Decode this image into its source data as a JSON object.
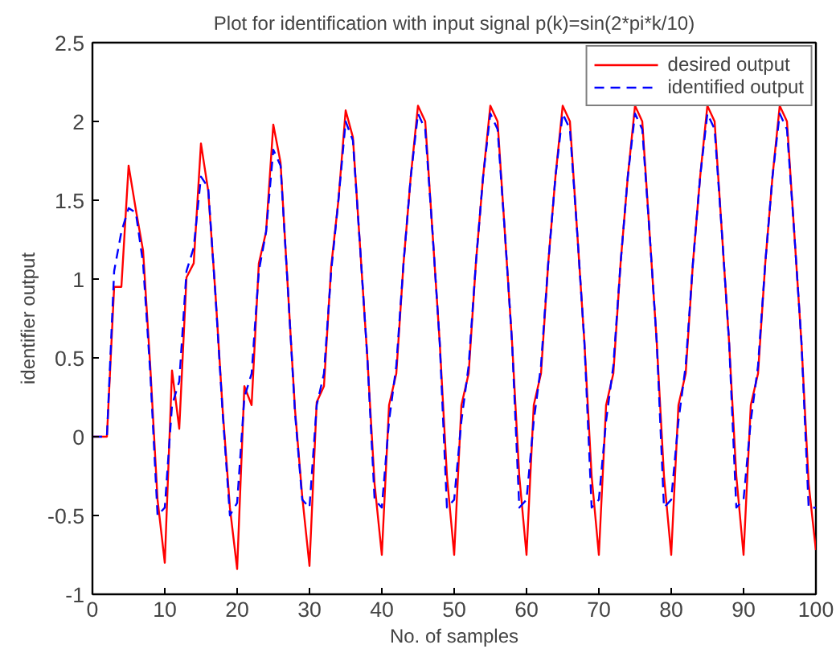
{
  "chart_data": {
    "type": "line",
    "title": "Plot for identification with input signal p(k)=sin(2*pi*k/10)",
    "xlabel": "No. of samples",
    "ylabel": "identifier output",
    "x": [
      0,
      1,
      2,
      3,
      4,
      5,
      6,
      7,
      8,
      9,
      10,
      11,
      12,
      13,
      14,
      15,
      16,
      17,
      18,
      19,
      20,
      21,
      22,
      23,
      24,
      25,
      26,
      27,
      28,
      29,
      30,
      31,
      32,
      33,
      34,
      35,
      36,
      37,
      38,
      39,
      40,
      41,
      42,
      43,
      44,
      45,
      46,
      47,
      48,
      49,
      50,
      51,
      52,
      53,
      54,
      55,
      56,
      57,
      58,
      59,
      60,
      61,
      62,
      63,
      64,
      65,
      66,
      67,
      68,
      69,
      70,
      71,
      72,
      73,
      74,
      75,
      76,
      77,
      78,
      79,
      80,
      81,
      82,
      83,
      84,
      85,
      86,
      87,
      88,
      89,
      90,
      91,
      92,
      93,
      94,
      95,
      96,
      97,
      98,
      99,
      100
    ],
    "series": [
      {
        "name": "desired output",
        "color": "#ff0000",
        "line_style": "solid",
        "values": [
          0,
          0,
          0,
          0.95,
          0.95,
          1.72,
          1.44,
          1.18,
          0.44,
          -0.4,
          -0.8,
          0.42,
          0.05,
          1.01,
          1.1,
          1.86,
          1.56,
          0.91,
          0.17,
          -0.45,
          -0.84,
          0.32,
          0.2,
          1.1,
          1.3,
          1.98,
          1.74,
          0.95,
          0.17,
          -0.38,
          -0.82,
          0.22,
          0.32,
          1.08,
          1.5,
          2.07,
          1.9,
          1.2,
          0.5,
          -0.3,
          -0.75,
          0.2,
          0.4,
          1.1,
          1.65,
          2.1,
          2.0,
          1.3,
          0.6,
          -0.25,
          -0.75,
          0.2,
          0.4,
          1.1,
          1.65,
          2.1,
          2.0,
          1.3,
          0.6,
          -0.25,
          -0.75,
          0.2,
          0.4,
          1.1,
          1.65,
          2.1,
          2.0,
          1.3,
          0.6,
          -0.25,
          -0.75,
          0.2,
          0.4,
          1.1,
          1.65,
          2.1,
          2.0,
          1.3,
          0.6,
          -0.25,
          -0.75,
          0.2,
          0.4,
          1.1,
          1.65,
          2.1,
          2.0,
          1.3,
          0.6,
          -0.25,
          -0.75,
          0.2,
          0.4,
          1.1,
          1.65,
          2.1,
          2.0,
          1.3,
          0.6,
          -0.3,
          -0.72
        ]
      },
      {
        "name": "identified output",
        "color": "#0000ff",
        "line_style": "dashed",
        "values": [
          0,
          0,
          0,
          1.05,
          1.3,
          1.45,
          1.42,
          1.1,
          0.4,
          -0.5,
          -0.45,
          0.2,
          0.35,
          1.05,
          1.2,
          1.65,
          1.58,
          0.9,
          0.15,
          -0.5,
          -0.42,
          0.25,
          0.4,
          1.05,
          1.3,
          1.82,
          1.72,
          0.95,
          0.15,
          -0.4,
          -0.45,
          0.2,
          0.4,
          1.05,
          1.5,
          2.0,
          1.88,
          1.2,
          0.5,
          -0.4,
          -0.45,
          0.1,
          0.45,
          1.1,
          1.65,
          2.05,
          1.95,
          1.3,
          0.6,
          -0.45,
          -0.4,
          0.1,
          0.45,
          1.1,
          1.65,
          2.05,
          1.95,
          1.3,
          0.6,
          -0.45,
          -0.4,
          0.1,
          0.45,
          1.1,
          1.65,
          2.05,
          1.95,
          1.3,
          0.6,
          -0.45,
          -0.4,
          0.1,
          0.45,
          1.1,
          1.65,
          2.05,
          1.95,
          1.3,
          0.6,
          -0.45,
          -0.4,
          0.1,
          0.45,
          1.1,
          1.65,
          2.05,
          1.95,
          1.3,
          0.6,
          -0.45,
          -0.4,
          0.1,
          0.45,
          1.1,
          1.65,
          2.05,
          1.95,
          1.3,
          0.6,
          -0.45,
          -0.45
        ]
      }
    ],
    "xlim": [
      0,
      100
    ],
    "xticks": [
      0,
      10,
      20,
      30,
      40,
      50,
      60,
      70,
      80,
      90,
      100
    ],
    "ylim": [
      -1,
      2.5
    ],
    "yticks": [
      -1,
      -0.5,
      0,
      0.5,
      1,
      1.5,
      2,
      2.5
    ],
    "grid": false,
    "legend": "top right",
    "marker": "none"
  }
}
